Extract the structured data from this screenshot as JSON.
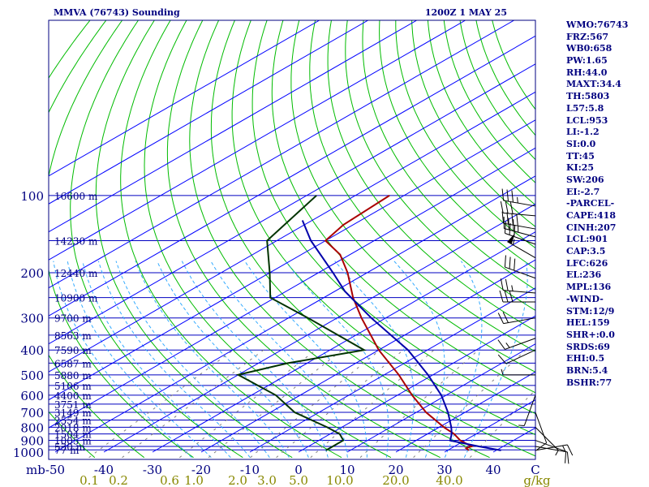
{
  "header": {
    "station": "MMVA (76743) Sounding",
    "time": "1200Z  1 MAY 25"
  },
  "colors": {
    "frame": "#000080",
    "isobar": "#0000c0",
    "isotherm": "#0000ff",
    "dry_adiabat": "#00bb00",
    "moist_adiabat": "#33aaff",
    "mixing_ratio": "#808080",
    "temperature": "#aa0000",
    "dewpoint": "#003300",
    "parcel": "#0000aa",
    "wind": "#000000",
    "axis_text": "#000080",
    "mixing_text": "#888800"
  },
  "stats": [
    "WMO:76743",
    "FRZ:567",
    "WB0:658",
    "PW:1.65",
    "RH:44.0",
    "MAXT:34.4",
    "TH:5803",
    "L57:5.8",
    "LCL:953",
    "LI:-1.2",
    "SI:0.0",
    "TT:45",
    "KI:25",
    "SW:206",
    "EI:-2.7",
    "-PARCEL-",
    "CAPE:418",
    "CINH:207",
    "LCL:901",
    "CAP:3.5",
    "LFC:626",
    "EL:236",
    "MPL:136",
    "-WIND-",
    "STM:12/9",
    "HEL:159",
    "SHR+:0.0",
    "SRDS:69",
    "EHI:0.5",
    "BRN:5.4",
    "BSHR:77"
  ],
  "chart_data": {
    "type": "skew-t",
    "x_unit": "C",
    "y_unit": "mb",
    "y_log": true,
    "ylim": [
      1000,
      100
    ],
    "xlim": [
      -50,
      50
    ],
    "pressure_labels": [
      {
        "p": 100,
        "text": "100"
      },
      {
        "p": 200,
        "text": "200"
      },
      {
        "p": 300,
        "text": "300"
      },
      {
        "p": 400,
        "text": "400"
      },
      {
        "p": 500,
        "text": "500"
      },
      {
        "p": 600,
        "text": "600"
      },
      {
        "p": 700,
        "text": "700"
      },
      {
        "p": 800,
        "text": "800"
      },
      {
        "p": 900,
        "text": "900"
      },
      {
        "p": 1000,
        "text": "1000"
      }
    ],
    "mb_label": "mb",
    "temperature_ticks": [
      {
        "t": -50,
        "text": "-50"
      },
      {
        "t": -40,
        "text": "-40"
      },
      {
        "t": -30,
        "text": "-30"
      },
      {
        "t": -20,
        "text": "-20"
      },
      {
        "t": -10,
        "text": "-10"
      },
      {
        "t": 0,
        "text": "0"
      },
      {
        "t": 10,
        "text": "10"
      },
      {
        "t": 20,
        "text": "20"
      },
      {
        "t": 30,
        "text": "30"
      },
      {
        "t": 40,
        "text": "40"
      }
    ],
    "c_label": "C",
    "mixing_ratio_labels": [
      {
        "t": -43,
        "text": "0.1"
      },
      {
        "t": -37,
        "text": "0.2"
      },
      {
        "t": -26.5,
        "text": "0.6"
      },
      {
        "t": -21.5,
        "text": "1.0"
      },
      {
        "t": -12.5,
        "text": "2.0"
      },
      {
        "t": -6.5,
        "text": "3.0"
      },
      {
        "t": 0,
        "text": "5.0"
      },
      {
        "t": 8.5,
        "text": "10.0"
      },
      {
        "t": 20,
        "text": "20.0"
      },
      {
        "t": 31,
        "text": "40.0"
      }
    ],
    "gkg_label": "g/kg",
    "mixing_ratio_values": [
      0.1,
      0.2,
      0.6,
      1.0,
      2.0,
      3.0,
      5.0,
      10.0,
      20.0,
      40.0
    ],
    "height_labels": [
      {
        "p": 100,
        "text": "16600 m"
      },
      {
        "p": 150,
        "text": "14230 m"
      },
      {
        "p": 200,
        "text": "12440 m"
      },
      {
        "p": 250,
        "text": "10900 m"
      },
      {
        "p": 300,
        "text": "9700 m"
      },
      {
        "p": 350,
        "text": "8563 m"
      },
      {
        "p": 400,
        "text": "7590 m"
      },
      {
        "p": 450,
        "text": "6587 m"
      },
      {
        "p": 500,
        "text": "5880 m"
      },
      {
        "p": 550,
        "text": "5106 m"
      },
      {
        "p": 600,
        "text": "4400 m"
      },
      {
        "p": 650,
        "text": "3751 m"
      },
      {
        "p": 700,
        "text": "3149 m"
      },
      {
        "p": 750,
        "text": "2554 m"
      },
      {
        "p": 800,
        "text": "2018 m"
      },
      {
        "p": 850,
        "text": "1504 m"
      },
      {
        "p": 900,
        "text": "1005 m"
      },
      {
        "p": 950,
        "text": "530 m"
      },
      {
        "p": 980,
        "text": "77 m"
      }
    ],
    "series": [
      {
        "name": "temperature",
        "points": [
          {
            "p": 985,
            "t": 34.4
          },
          {
            "p": 965,
            "t": 33
          },
          {
            "p": 950,
            "t": 33.5
          },
          {
            "p": 900,
            "t": 29
          },
          {
            "p": 850,
            "t": 25.5
          },
          {
            "p": 800,
            "t": 21
          },
          {
            "p": 700,
            "t": 12
          },
          {
            "p": 600,
            "t": 3
          },
          {
            "p": 500,
            "t": -7
          },
          {
            "p": 400,
            "t": -20
          },
          {
            "p": 300,
            "t": -35
          },
          {
            "p": 250,
            "t": -44
          },
          {
            "p": 200,
            "t": -54
          },
          {
            "p": 170,
            "t": -62
          },
          {
            "p": 150,
            "t": -70
          },
          {
            "p": 130,
            "t": -72
          },
          {
            "p": 100,
            "t": -73
          }
        ]
      },
      {
        "name": "dewpoint",
        "points": [
          {
            "p": 985,
            "t": 5
          },
          {
            "p": 960,
            "t": 5
          },
          {
            "p": 900,
            "t": 5
          },
          {
            "p": 850,
            "t": 2
          },
          {
            "p": 800,
            "t": -3
          },
          {
            "p": 700,
            "t": -15
          },
          {
            "p": 600,
            "t": -25
          },
          {
            "p": 500,
            "t": -40
          },
          {
            "p": 450,
            "t": -34
          },
          {
            "p": 400,
            "t": -23
          },
          {
            "p": 300,
            "t": -46
          },
          {
            "p": 250,
            "t": -61
          },
          {
            "p": 200,
            "t": -70
          },
          {
            "p": 150,
            "t": -82
          },
          {
            "p": 100,
            "t": -88
          }
        ]
      },
      {
        "name": "parcel",
        "points": [
          {
            "p": 985,
            "t": 41
          },
          {
            "p": 950,
            "t": 35
          },
          {
            "p": 901,
            "t": 27
          },
          {
            "p": 850,
            "t": 25
          },
          {
            "p": 800,
            "t": 22.5
          },
          {
            "p": 700,
            "t": 16.5
          },
          {
            "p": 600,
            "t": 9
          },
          {
            "p": 500,
            "t": -1
          },
          {
            "p": 400,
            "t": -14
          },
          {
            "p": 300,
            "t": -33
          },
          {
            "p": 236,
            "t": -48
          },
          {
            "p": 200,
            "t": -57
          },
          {
            "p": 150,
            "t": -73
          },
          {
            "p": 125,
            "t": -82
          }
        ]
      }
    ],
    "wind_barbs": [
      {
        "p": 110,
        "dir": 280,
        "kt": 35
      },
      {
        "p": 120,
        "dir": 275,
        "kt": 30
      },
      {
        "p": 135,
        "dir": 280,
        "kt": 40
      },
      {
        "p": 145,
        "dir": 285,
        "kt": 35
      },
      {
        "p": 155,
        "dir": 290,
        "kt": 30
      },
      {
        "p": 175,
        "dir": 300,
        "kt": 55
      },
      {
        "p": 210,
        "dir": 290,
        "kt": 30
      },
      {
        "p": 240,
        "dir": 275,
        "kt": 25
      },
      {
        "p": 260,
        "dir": 270,
        "kt": 30
      },
      {
        "p": 300,
        "dir": 260,
        "kt": 20
      },
      {
        "p": 360,
        "dir": 250,
        "kt": 15
      },
      {
        "p": 400,
        "dir": 245,
        "kt": 10
      },
      {
        "p": 500,
        "dir": 270,
        "kt": 5
      },
      {
        "p": 600,
        "dir": 200,
        "kt": 5
      },
      {
        "p": 700,
        "dir": 160,
        "kt": 10
      },
      {
        "p": 800,
        "dir": 135,
        "kt": 5
      },
      {
        "p": 900,
        "dir": 110,
        "kt": 10
      },
      {
        "p": 950,
        "dir": 100,
        "kt": 10
      },
      {
        "p": 985,
        "dir": 80,
        "kt": 15
      }
    ]
  }
}
